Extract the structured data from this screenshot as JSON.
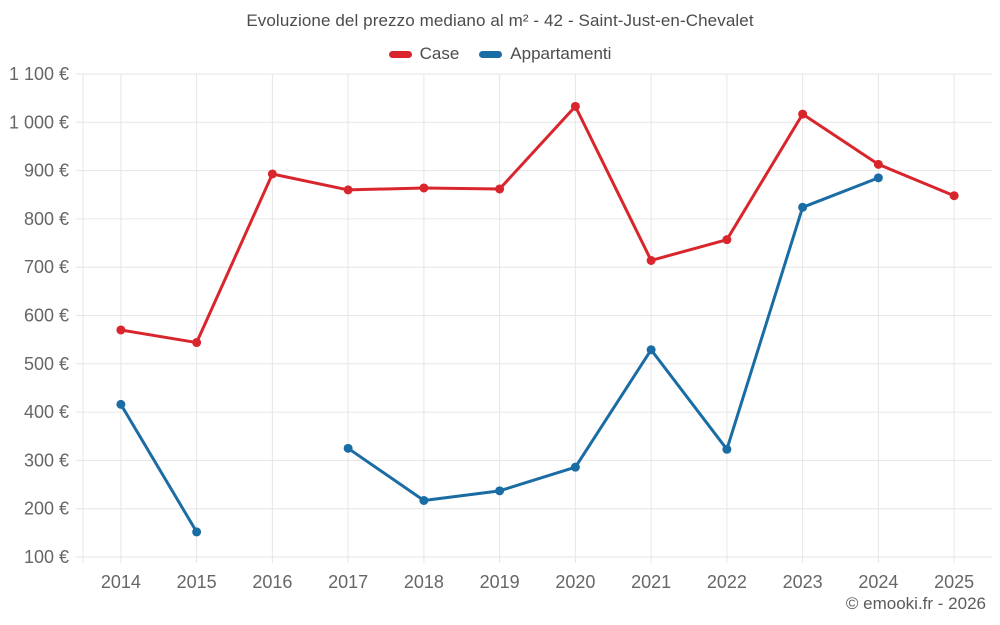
{
  "title": "Evoluzione del prezzo mediano al m² - 42 - Saint-Just-en-Chevalet",
  "legend": {
    "items": [
      {
        "label": "Case",
        "color": "#d8262c"
      },
      {
        "label": "Appartamenti",
        "color": "#1a6ca4"
      }
    ]
  },
  "footer": {
    "credit": "© emooki.fr - 2026"
  },
  "colors": {
    "case_red": "#d8262c",
    "appartamenti_blue": "#1a6ca4",
    "gridline": "#e6e6e6",
    "tick_text": "#666666",
    "title_text": "#4c4c4c"
  },
  "chart_data": {
    "type": "line",
    "title": "Evoluzione del prezzo mediano al m² - 42 - Saint-Just-en-Chevalet",
    "xlabel": "",
    "ylabel": "",
    "x": [
      "2014",
      "2015",
      "2016",
      "2017",
      "2018",
      "2019",
      "2020",
      "2021",
      "2022",
      "2023",
      "2024",
      "2025"
    ],
    "series": [
      {
        "name": "Case",
        "color": "#d8262c",
        "values": [
          570,
          544,
          893,
          860,
          864,
          862,
          1033,
          714,
          757,
          1017,
          913,
          848
        ]
      },
      {
        "name": "Appartamenti",
        "color": "#1a6ca4",
        "values": [
          416,
          152,
          null,
          325,
          217,
          237,
          286,
          529,
          323,
          824,
          885,
          null
        ]
      }
    ],
    "ylim": [
      100,
      1100
    ],
    "y_ticks": {
      "values": [
        100,
        200,
        300,
        400,
        500,
        600,
        700,
        800,
        900,
        1000,
        1100
      ],
      "labels": [
        "100 €",
        "200 €",
        "300 €",
        "400 €",
        "500 €",
        "600 €",
        "700 €",
        "800 €",
        "900 €",
        "1 000 €",
        "1 100 €"
      ]
    },
    "grid": true,
    "legend_position": "top",
    "currency_suffix": " €"
  }
}
